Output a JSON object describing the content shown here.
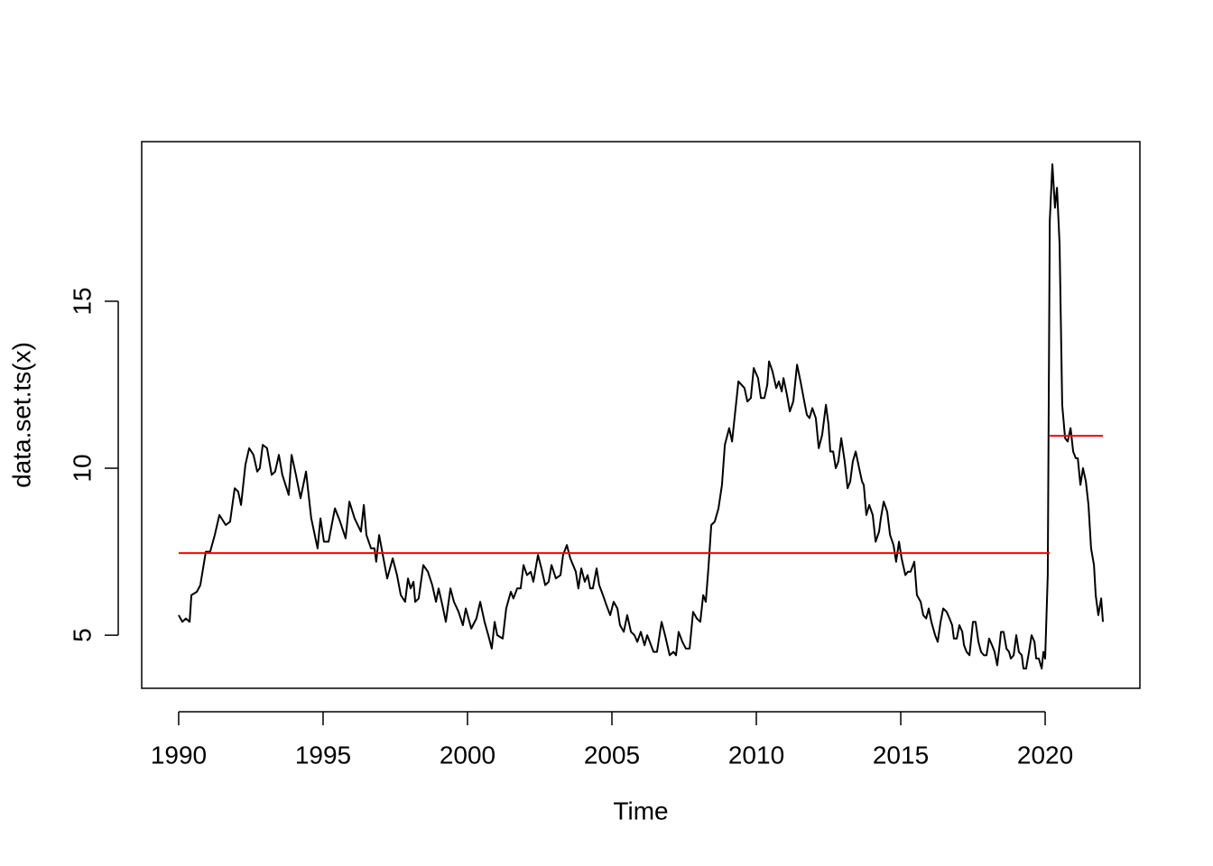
{
  "chart_data": {
    "type": "line",
    "x_label": "Time",
    "y_label": "data.set.ts(x)",
    "xlim": [
      1988.72,
      2023.28
    ],
    "ylim": [
      3.41,
      19.78
    ],
    "xticks": [
      1990,
      1995,
      2000,
      2005,
      2010,
      2015,
      2020
    ],
    "yticks": [
      5,
      10,
      15
    ],
    "x": [
      1990.0,
      1990.13,
      1990.25,
      1990.38,
      1990.44,
      1990.63,
      1990.75,
      1990.94,
      1991.09,
      1991.25,
      1991.41,
      1991.63,
      1991.78,
      1991.94,
      1992.06,
      1992.16,
      1992.31,
      1992.44,
      1992.59,
      1992.72,
      1992.81,
      1992.91,
      1993.06,
      1993.22,
      1993.34,
      1993.47,
      1993.59,
      1993.81,
      1993.91,
      1994.06,
      1994.22,
      1994.41,
      1994.59,
      1994.81,
      1994.91,
      1995.03,
      1995.19,
      1995.41,
      1995.59,
      1995.78,
      1995.91,
      1996.09,
      1996.31,
      1996.41,
      1996.5,
      1996.66,
      1996.78,
      1996.84,
      1996.94,
      1997.09,
      1997.22,
      1997.41,
      1997.56,
      1997.69,
      1997.84,
      1997.94,
      1998.03,
      1998.13,
      1998.19,
      1998.31,
      1998.47,
      1998.63,
      1998.78,
      1998.91,
      1999.0,
      1999.13,
      1999.25,
      1999.41,
      1999.53,
      1999.69,
      1999.84,
      1999.94,
      2000.13,
      2000.31,
      2000.44,
      2000.59,
      2000.72,
      2000.84,
      2000.94,
      2001.03,
      2001.22,
      2001.34,
      2001.5,
      2001.59,
      2001.72,
      2001.84,
      2001.94,
      2002.06,
      2002.19,
      2002.28,
      2002.44,
      2002.56,
      2002.69,
      2002.81,
      2002.91,
      2003.06,
      2003.22,
      2003.31,
      2003.44,
      2003.56,
      2003.75,
      2003.84,
      2003.94,
      2004.06,
      2004.16,
      2004.25,
      2004.34,
      2004.47,
      2004.56,
      2004.69,
      2004.81,
      2004.94,
      2005.06,
      2005.19,
      2005.28,
      2005.41,
      2005.53,
      2005.66,
      2005.78,
      2005.88,
      2006.0,
      2006.13,
      2006.22,
      2006.31,
      2006.44,
      2006.56,
      2006.72,
      2006.84,
      2007.0,
      2007.13,
      2007.22,
      2007.31,
      2007.44,
      2007.56,
      2007.69,
      2007.81,
      2007.94,
      2008.06,
      2008.16,
      2008.25,
      2008.34,
      2008.44,
      2008.56,
      2008.69,
      2008.81,
      2008.91,
      2009.06,
      2009.16,
      2009.38,
      2009.59,
      2009.69,
      2009.81,
      2009.91,
      2010.06,
      2010.16,
      2010.28,
      2010.38,
      2010.44,
      2010.56,
      2010.69,
      2010.78,
      2010.88,
      2010.94,
      2011.06,
      2011.16,
      2011.28,
      2011.41,
      2011.53,
      2011.66,
      2011.75,
      2011.84,
      2011.94,
      2012.06,
      2012.16,
      2012.28,
      2012.41,
      2012.5,
      2012.56,
      2012.66,
      2012.75,
      2012.84,
      2012.94,
      2013.06,
      2013.16,
      2013.25,
      2013.34,
      2013.44,
      2013.56,
      2013.66,
      2013.72,
      2013.81,
      2013.91,
      2014.03,
      2014.13,
      2014.25,
      2014.31,
      2014.41,
      2014.53,
      2014.63,
      2014.75,
      2014.84,
      2014.94,
      2015.03,
      2015.16,
      2015.25,
      2015.34,
      2015.47,
      2015.56,
      2015.69,
      2015.78,
      2015.88,
      2015.97,
      2016.06,
      2016.19,
      2016.28,
      2016.38,
      2016.47,
      2016.59,
      2016.69,
      2016.78,
      2016.84,
      2016.94,
      2017.03,
      2017.13,
      2017.19,
      2017.28,
      2017.38,
      2017.44,
      2017.5,
      2017.59,
      2017.69,
      2017.78,
      2017.88,
      2017.97,
      2018.06,
      2018.16,
      2018.25,
      2018.34,
      2018.41,
      2018.47,
      2018.56,
      2018.66,
      2018.75,
      2018.81,
      2018.91,
      2019.0,
      2019.09,
      2019.19,
      2019.25,
      2019.34,
      2019.44,
      2019.53,
      2019.63,
      2019.69,
      2019.78,
      2019.88,
      2019.94,
      2020.0,
      2020.09,
      2020.16,
      2020.25,
      2020.34,
      2020.41,
      2020.5,
      2020.59,
      2020.69,
      2020.78,
      2020.88,
      2020.97,
      2021.06,
      2021.13,
      2021.22,
      2021.31,
      2021.41,
      2021.5,
      2021.59,
      2021.69,
      2021.75,
      2021.84,
      2021.94,
      2022.0
    ],
    "series": [
      {
        "color": "#000000",
        "values": [
          5.6,
          5.4,
          5.5,
          5.4,
          6.2,
          6.3,
          6.5,
          7.5,
          7.5,
          8.0,
          8.6,
          8.3,
          8.4,
          9.4,
          9.3,
          8.9,
          10.1,
          10.6,
          10.4,
          9.9,
          10.0,
          10.7,
          10.6,
          9.8,
          9.9,
          10.4,
          9.8,
          9.2,
          10.4,
          9.8,
          9.1,
          9.9,
          8.5,
          7.6,
          8.5,
          7.8,
          7.8,
          8.8,
          8.4,
          7.9,
          9.0,
          8.5,
          8.1,
          8.9,
          8.0,
          7.6,
          7.6,
          7.2,
          8.0,
          7.3,
          6.7,
          7.3,
          6.8,
          6.2,
          6.0,
          6.7,
          6.4,
          6.6,
          6.0,
          6.1,
          7.1,
          6.9,
          6.5,
          6.0,
          6.4,
          5.9,
          5.4,
          6.4,
          6.0,
          5.7,
          5.3,
          5.8,
          5.2,
          5.5,
          6.0,
          5.4,
          5.0,
          4.6,
          5.4,
          5.0,
          4.9,
          5.8,
          6.3,
          6.1,
          6.4,
          6.4,
          7.1,
          6.8,
          6.9,
          6.6,
          7.4,
          7.0,
          6.5,
          6.6,
          7.1,
          6.7,
          6.8,
          7.4,
          7.7,
          7.3,
          6.9,
          6.4,
          7.0,
          6.6,
          6.8,
          6.4,
          6.4,
          7.0,
          6.5,
          6.2,
          5.9,
          5.6,
          6.0,
          5.8,
          5.3,
          5.1,
          5.6,
          5.1,
          5.0,
          4.8,
          5.1,
          4.7,
          5.0,
          4.8,
          4.5,
          4.5,
          5.4,
          5.0,
          4.4,
          4.5,
          4.4,
          5.1,
          4.8,
          4.6,
          4.6,
          5.7,
          5.5,
          5.4,
          6.2,
          6.0,
          7.0,
          8.3,
          8.4,
          8.8,
          9.5,
          10.7,
          11.2,
          10.8,
          12.6,
          12.4,
          12.0,
          12.1,
          13.0,
          12.7,
          12.1,
          12.1,
          12.5,
          13.2,
          12.9,
          12.4,
          12.6,
          12.3,
          12.7,
          12.2,
          11.7,
          12.0,
          13.1,
          12.6,
          12.0,
          11.6,
          11.5,
          11.8,
          11.5,
          10.6,
          11.0,
          11.9,
          11.3,
          10.5,
          10.5,
          10.0,
          10.2,
          10.9,
          10.2,
          9.4,
          9.6,
          10.2,
          10.5,
          10.0,
          9.6,
          9.5,
          8.6,
          8.9,
          8.6,
          7.8,
          8.1,
          8.5,
          9.0,
          8.7,
          8.0,
          7.7,
          7.2,
          7.8,
          7.3,
          6.8,
          6.9,
          6.9,
          7.2,
          6.2,
          6.0,
          5.6,
          5.5,
          5.8,
          5.4,
          5.0,
          4.8,
          5.4,
          5.8,
          5.7,
          5.5,
          5.3,
          4.9,
          4.9,
          5.3,
          5.1,
          4.7,
          4.5,
          4.4,
          4.9,
          5.4,
          5.4,
          4.8,
          4.5,
          4.4,
          4.4,
          4.9,
          4.7,
          4.5,
          4.1,
          4.6,
          5.1,
          5.1,
          4.6,
          4.5,
          4.3,
          4.4,
          5.0,
          4.5,
          4.4,
          4.0,
          4.0,
          4.5,
          5.0,
          4.8,
          4.3,
          4.3,
          4.0,
          4.5,
          4.3,
          6.8,
          17.4,
          19.1,
          17.8,
          18.4,
          16.7,
          11.9,
          10.9,
          10.8,
          11.2,
          10.5,
          10.3,
          10.3,
          9.5,
          10.0,
          9.6,
          8.9,
          7.6,
          7.1,
          6.2,
          5.6,
          6.1,
          5.4
        ]
      },
      {
        "color": "#ff0000",
        "x": [
          1990.0,
          2020.16
        ],
        "values": [
          7.46,
          7.46
        ]
      },
      {
        "color": "#ff0000",
        "x": [
          2020.16,
          2022.0
        ],
        "values": [
          10.97,
          10.97
        ]
      }
    ]
  }
}
